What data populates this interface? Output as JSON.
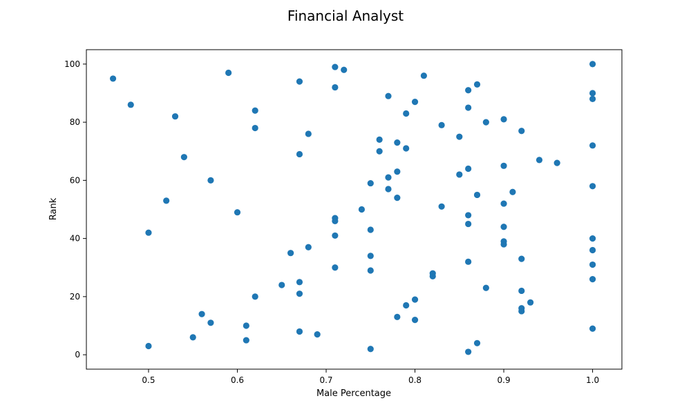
{
  "chart_data": {
    "type": "scatter",
    "title": "Financial Analyst",
    "xlabel": "Male Percentage",
    "ylabel": "Rank",
    "xlim": [
      0.43,
      1.033
    ],
    "ylim": [
      -4.95,
      104.95
    ],
    "xticks": [
      0.5,
      0.6,
      0.7,
      0.8,
      0.9,
      1.0
    ],
    "xtick_labels": [
      "0.5",
      "0.6",
      "0.7",
      "0.8",
      "0.9",
      "1.0"
    ],
    "yticks": [
      0,
      20,
      40,
      60,
      80,
      100
    ],
    "ytick_labels": [
      "0",
      "20",
      "40",
      "60",
      "80",
      "100"
    ],
    "grid": false,
    "marker_color": "#1f77b4",
    "series": [
      {
        "points": [
          {
            "x": 0.46,
            "y": 95
          },
          {
            "x": 0.48,
            "y": 86
          },
          {
            "x": 0.53,
            "y": 82
          },
          {
            "x": 0.59,
            "y": 97
          },
          {
            "x": 0.62,
            "y": 84
          },
          {
            "x": 0.62,
            "y": 78
          },
          {
            "x": 0.54,
            "y": 68
          },
          {
            "x": 0.57,
            "y": 60
          },
          {
            "x": 0.52,
            "y": 53
          },
          {
            "x": 0.6,
            "y": 49
          },
          {
            "x": 0.5,
            "y": 42
          },
          {
            "x": 0.66,
            "y": 35
          },
          {
            "x": 0.68,
            "y": 37
          },
          {
            "x": 0.65,
            "y": 24
          },
          {
            "x": 0.67,
            "y": 25
          },
          {
            "x": 0.67,
            "y": 21
          },
          {
            "x": 0.62,
            "y": 20
          },
          {
            "x": 0.56,
            "y": 14
          },
          {
            "x": 0.57,
            "y": 11
          },
          {
            "x": 0.61,
            "y": 10
          },
          {
            "x": 0.55,
            "y": 6
          },
          {
            "x": 0.61,
            "y": 5
          },
          {
            "x": 0.67,
            "y": 8
          },
          {
            "x": 0.69,
            "y": 7
          },
          {
            "x": 0.5,
            "y": 3
          },
          {
            "x": 0.67,
            "y": 94
          },
          {
            "x": 0.71,
            "y": 99
          },
          {
            "x": 0.72,
            "y": 98
          },
          {
            "x": 0.71,
            "y": 92
          },
          {
            "x": 0.68,
            "y": 76
          },
          {
            "x": 0.67,
            "y": 69
          },
          {
            "x": 0.71,
            "y": 47
          },
          {
            "x": 0.71,
            "y": 46
          },
          {
            "x": 0.71,
            "y": 41
          },
          {
            "x": 0.71,
            "y": 30
          },
          {
            "x": 0.74,
            "y": 50
          },
          {
            "x": 0.75,
            "y": 59
          },
          {
            "x": 0.75,
            "y": 43
          },
          {
            "x": 0.75,
            "y": 34
          },
          {
            "x": 0.75,
            "y": 29
          },
          {
            "x": 0.75,
            "y": 2
          },
          {
            "x": 0.76,
            "y": 74
          },
          {
            "x": 0.76,
            "y": 70
          },
          {
            "x": 0.77,
            "y": 89
          },
          {
            "x": 0.77,
            "y": 61
          },
          {
            "x": 0.77,
            "y": 57
          },
          {
            "x": 0.78,
            "y": 73
          },
          {
            "x": 0.78,
            "y": 63
          },
          {
            "x": 0.78,
            "y": 54
          },
          {
            "x": 0.78,
            "y": 13
          },
          {
            "x": 0.79,
            "y": 83
          },
          {
            "x": 0.79,
            "y": 71
          },
          {
            "x": 0.79,
            "y": 17
          },
          {
            "x": 0.8,
            "y": 87
          },
          {
            "x": 0.8,
            "y": 19
          },
          {
            "x": 0.8,
            "y": 12
          },
          {
            "x": 0.81,
            "y": 96
          },
          {
            "x": 0.82,
            "y": 28
          },
          {
            "x": 0.82,
            "y": 27
          },
          {
            "x": 0.83,
            "y": 79
          },
          {
            "x": 0.83,
            "y": 51
          },
          {
            "x": 0.85,
            "y": 75
          },
          {
            "x": 0.85,
            "y": 62
          },
          {
            "x": 0.86,
            "y": 91
          },
          {
            "x": 0.86,
            "y": 85
          },
          {
            "x": 0.86,
            "y": 64
          },
          {
            "x": 0.86,
            "y": 48
          },
          {
            "x": 0.86,
            "y": 45
          },
          {
            "x": 0.86,
            "y": 32
          },
          {
            "x": 0.86,
            "y": 1
          },
          {
            "x": 0.87,
            "y": 93
          },
          {
            "x": 0.87,
            "y": 55
          },
          {
            "x": 0.87,
            "y": 4
          },
          {
            "x": 0.88,
            "y": 80
          },
          {
            "x": 0.88,
            "y": 23
          },
          {
            "x": 0.9,
            "y": 81
          },
          {
            "x": 0.9,
            "y": 65
          },
          {
            "x": 0.9,
            "y": 52
          },
          {
            "x": 0.9,
            "y": 44
          },
          {
            "x": 0.9,
            "y": 39
          },
          {
            "x": 0.9,
            "y": 38
          },
          {
            "x": 0.91,
            "y": 56
          },
          {
            "x": 0.92,
            "y": 77
          },
          {
            "x": 0.92,
            "y": 33
          },
          {
            "x": 0.92,
            "y": 22
          },
          {
            "x": 0.92,
            "y": 16
          },
          {
            "x": 0.92,
            "y": 15
          },
          {
            "x": 0.93,
            "y": 18
          },
          {
            "x": 0.94,
            "y": 67
          },
          {
            "x": 0.96,
            "y": 66
          },
          {
            "x": 1.0,
            "y": 100
          },
          {
            "x": 1.0,
            "y": 90
          },
          {
            "x": 1.0,
            "y": 88
          },
          {
            "x": 1.0,
            "y": 72
          },
          {
            "x": 1.0,
            "y": 58
          },
          {
            "x": 1.0,
            "y": 40
          },
          {
            "x": 1.0,
            "y": 36
          },
          {
            "x": 1.0,
            "y": 31
          },
          {
            "x": 1.0,
            "y": 26
          },
          {
            "x": 1.0,
            "y": 9
          }
        ]
      }
    ]
  }
}
